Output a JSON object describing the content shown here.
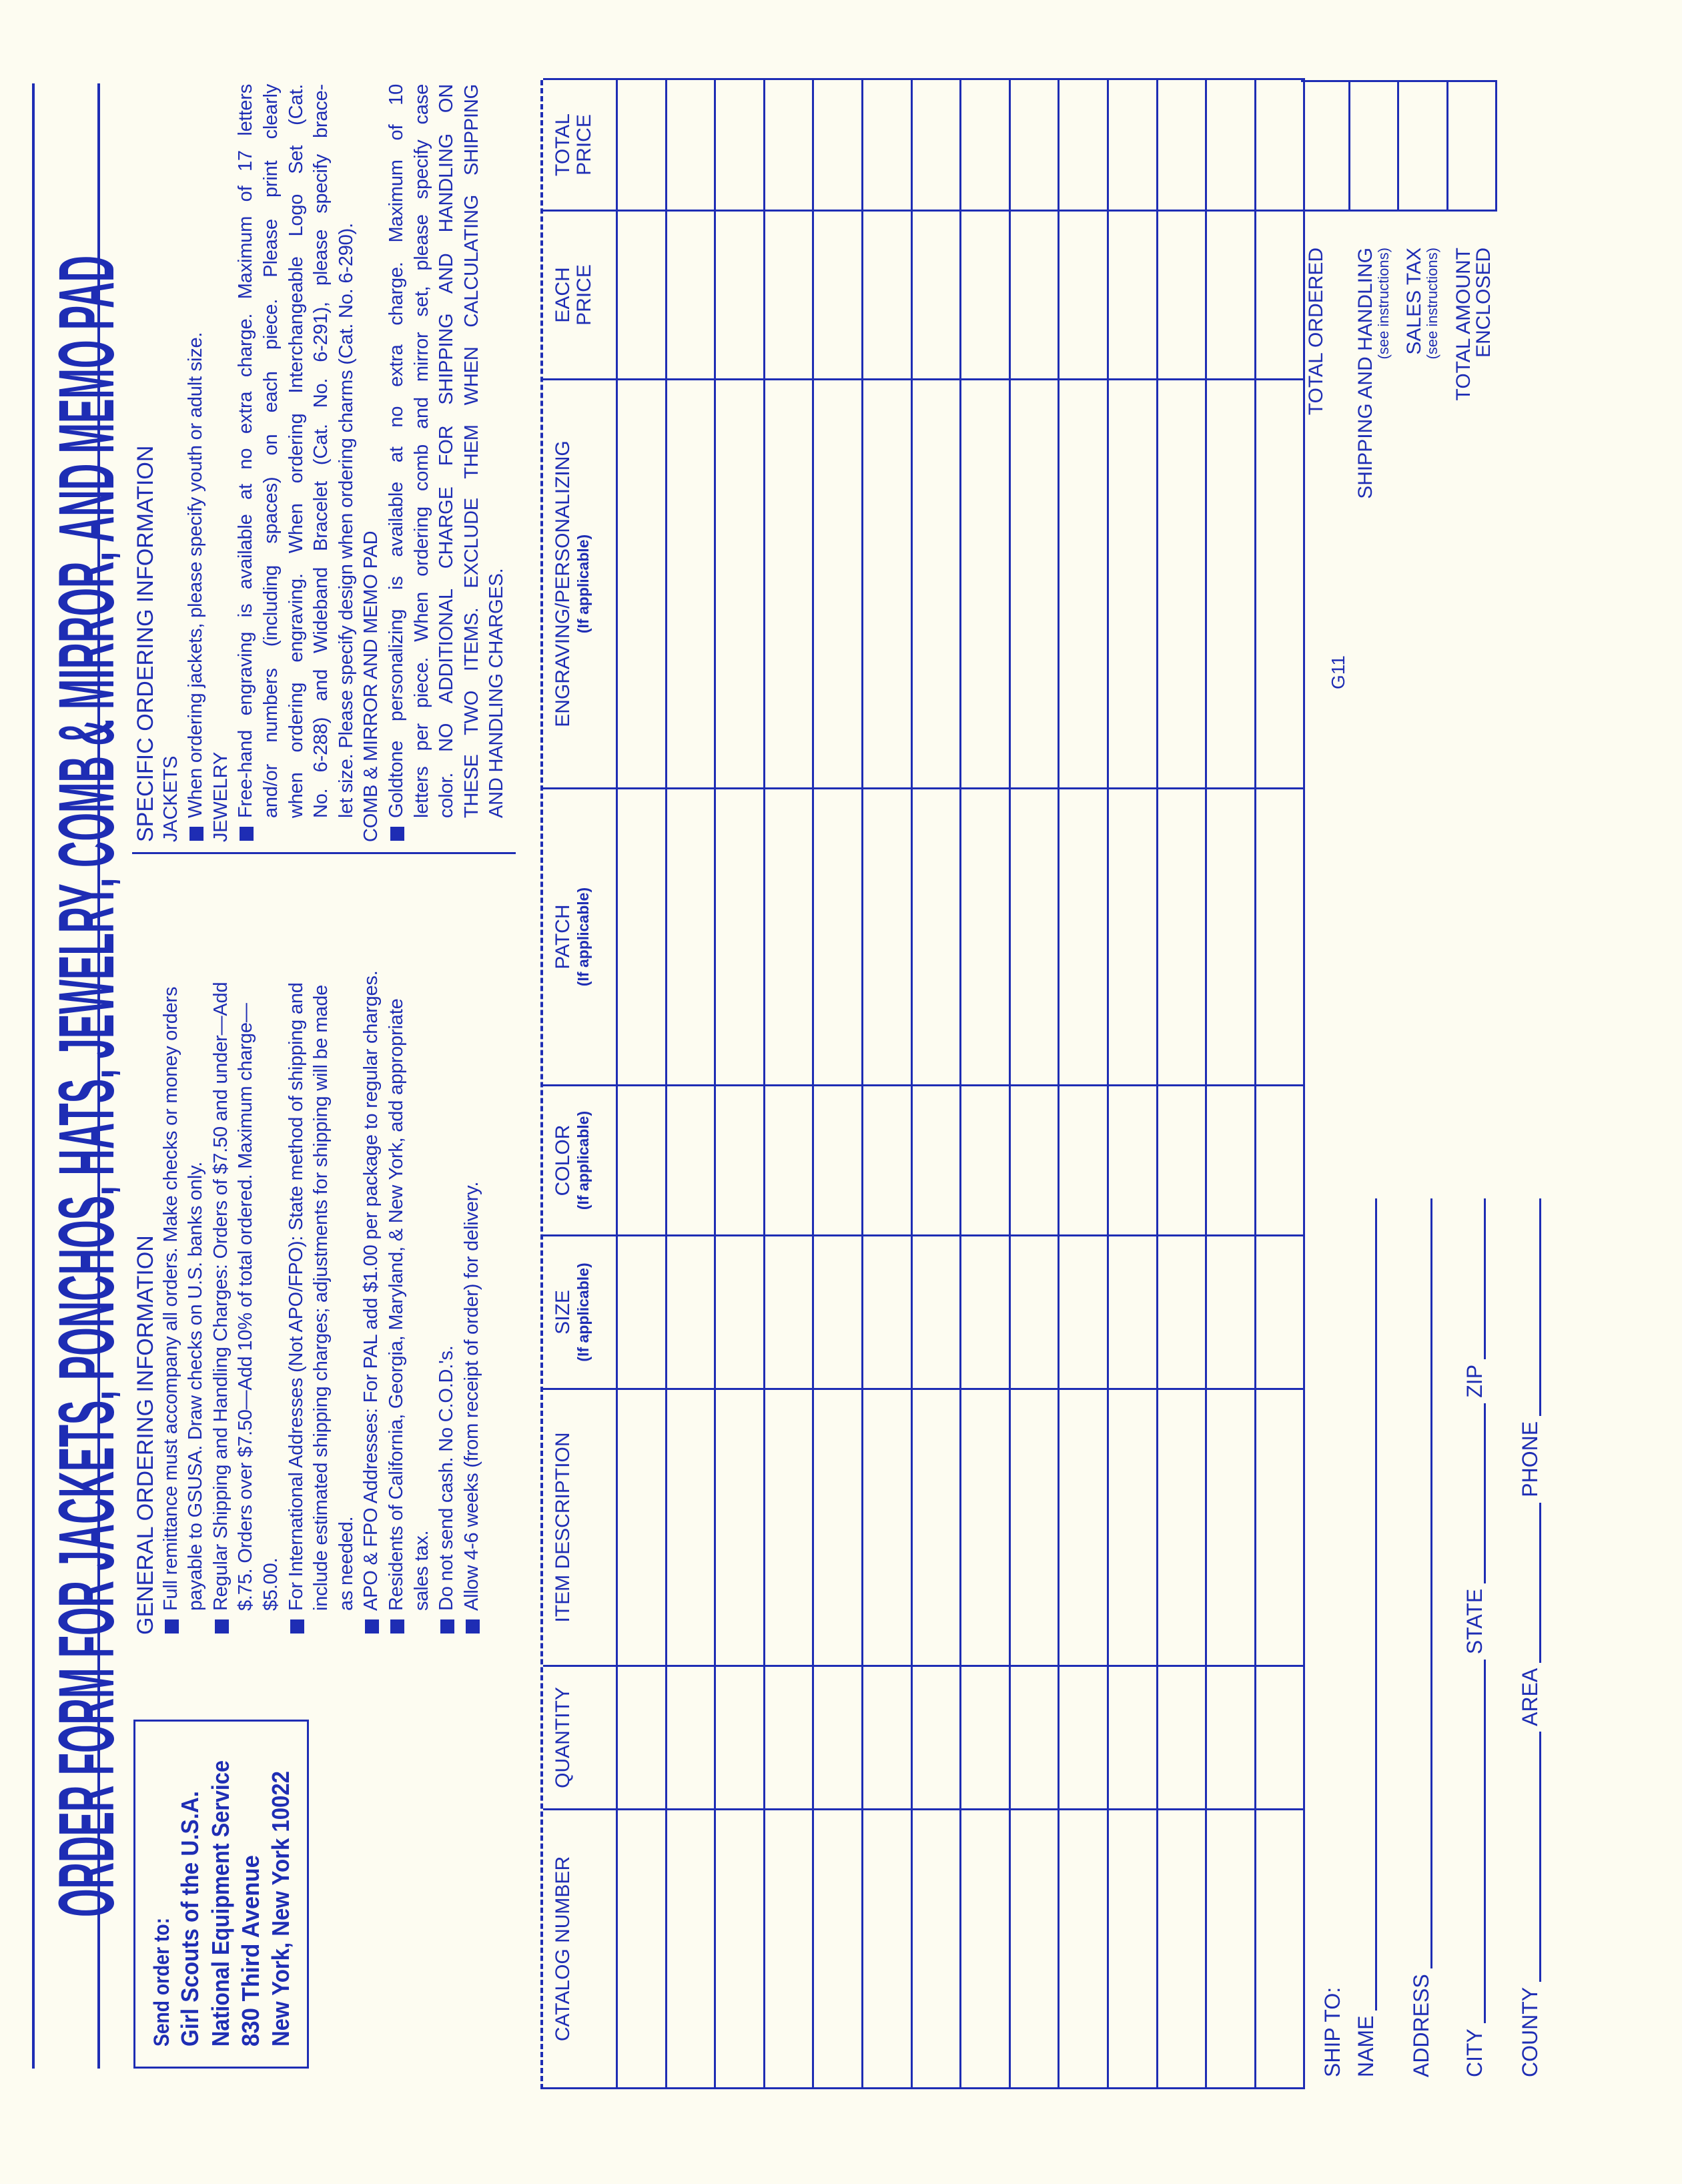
{
  "title": "ORDER FORM FOR JACKETS, PONCHOS, HATS, JEWELRY, COMB & MIRROR, AND MEMO PAD",
  "send_to": {
    "label": "Send order to:",
    "lines": [
      "Girl Scouts of the U.S.A.",
      "National Equipment Service",
      "830 Third Avenue",
      "New York, New York 10022"
    ]
  },
  "general": {
    "heading": "GENERAL ORDERING INFORMATION",
    "items": [
      [
        "Full remittance must accompany all orders. Make checks or money orders",
        "payable to GSUSA. Draw checks on U.S. banks only."
      ],
      [
        "Regular Shipping and Handling Charges: Orders of $7.50 and under—Add",
        "$.75. Orders over $7.50—Add 10% of total ordered. Maximum charge—",
        "$5.00."
      ],
      [
        "For International Addresses (Not APO/FPO): State method of shipping and",
        "include estimated shipping charges; adjustments for shipping will be made",
        "as needed."
      ],
      [
        "APO & FPO Addresses: For PAL add $1.00 per package to regular charges."
      ],
      [
        "Residents of California, Georgia, Maryland, & New York, add appropriate",
        "sales tax."
      ],
      [
        "Do not send cash. No C.O.D.'s."
      ],
      [
        "Allow 4-6 weeks (from receipt of order) for delivery."
      ]
    ]
  },
  "specific": {
    "heading": "SPECIFIC ORDERING INFORMATION",
    "sections": [
      {
        "title": "JACKETS",
        "items": [
          [
            "When ordering jackets, please specify youth or adult size."
          ]
        ]
      },
      {
        "title": "JEWELRY",
        "items": [
          [
            "Free-hand engraving is available at no extra charge. Maximum of 17 letters",
            "and/or numbers (including spaces) on each piece. Please print clearly",
            "when ordering engraving. When ordering Interchangeable Logo Set (Cat.",
            "No. 6-288) and Wideband Bracelet (Cat. No. 6-291), please specify brace-",
            "let size. Please specify design when ordering charms (Cat. No. 6-290)."
          ]
        ]
      },
      {
        "title": "COMB & MIRROR AND MEMO PAD",
        "items": [
          [
            "Goldtone personalizing is available at no extra charge. Maximum of 10",
            "letters per piece. When ordering comb and mirror set, please specify case",
            "color. NO ADDITIONAL CHARGE FOR SHIPPING AND HANDLING ON",
            "THESE TWO ITEMS. EXCLUDE THEM WHEN CALCULATING SHIPPING",
            "AND HANDLING CHARGES."
          ]
        ]
      }
    ]
  },
  "table": {
    "columns": [
      {
        "lines": [
          "CATALOG NUMBER"
        ]
      },
      {
        "lines": [
          "QUANTITY"
        ]
      },
      {
        "lines": [
          "ITEM DESCRIPTION"
        ]
      },
      {
        "lines": [
          "SIZE"
        ],
        "sub": "(If applicable)"
      },
      {
        "lines": [
          "COLOR"
        ],
        "sub": "(If applicable)"
      },
      {
        "lines": [
          "PATCH"
        ],
        "sub": "(If applicable)"
      },
      {
        "lines": [
          "ENGRAVING/PERSONALIZING"
        ],
        "sub": "(If applicable)"
      },
      {
        "lines": [
          "EACH",
          "PRICE"
        ]
      },
      {
        "lines": [
          "TOTAL",
          "PRICE"
        ]
      }
    ],
    "row_count": 14
  },
  "totals": [
    {
      "lines": [
        "TOTAL ORDERED"
      ]
    },
    {
      "lines": [
        "SHIPPING AND HANDLING"
      ],
      "note": "(see instructions)"
    },
    {
      "lines": [
        "SALES TAX"
      ],
      "note": "(see instructions)"
    },
    {
      "lines": [
        "TOTAL AMOUNT",
        "ENCLOSED"
      ]
    }
  ],
  "form_code": "G11",
  "ship_to": {
    "heading": "SHIP TO:",
    "name": "NAME",
    "address": "ADDRESS",
    "city": "CITY",
    "state": "STATE",
    "zip": "ZIP",
    "county": "COUNTY",
    "area": "AREA",
    "phone": "PHONE"
  },
  "colors": {
    "ink": "#1e2db4",
    "paper": "#fdfcf1"
  }
}
